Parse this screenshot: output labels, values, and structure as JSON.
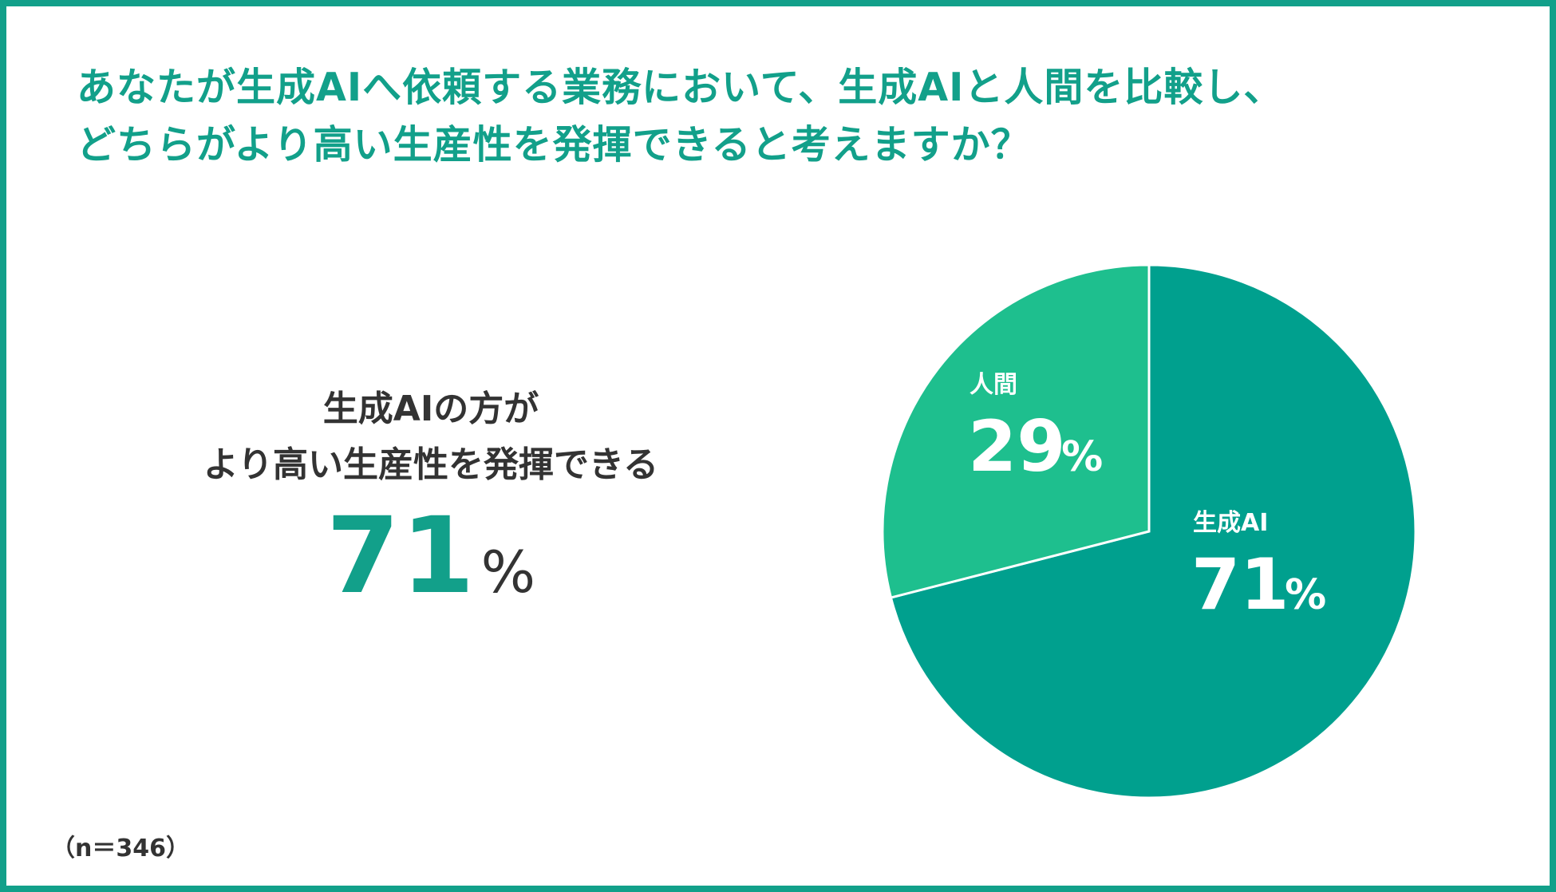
{
  "title": {
    "line1": "あなたが生成AIへ依頼する業務において、生成AIと人間を比較し、",
    "line2": "どちらがより高い生産性を発揮できると考えますか？"
  },
  "headline": {
    "line1": "生成AIの方が",
    "line2": "より高い生産性を発揮できる",
    "value": "71",
    "unit": "%"
  },
  "footnote": "（n＝346）",
  "colors": {
    "frame": "#12a08a",
    "accent_text": "#12a08a",
    "body_text": "#333333",
    "slice_ai": "#00a08e",
    "slice_human": "#1ebf8e"
  },
  "chart_data": {
    "type": "pie",
    "title": "",
    "slices": [
      {
        "label": "生成AI",
        "value": 71,
        "value_label": "71",
        "unit": "%",
        "color": "#00a08e"
      },
      {
        "label": "人間",
        "value": 29,
        "value_label": "29",
        "unit": "%",
        "color": "#1ebf8e"
      }
    ]
  }
}
